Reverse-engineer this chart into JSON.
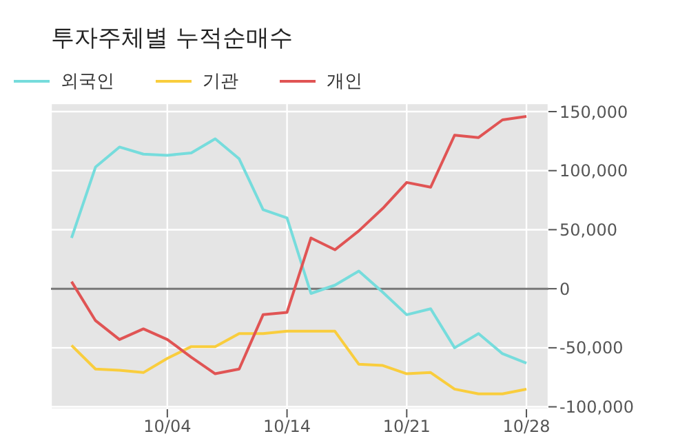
{
  "chart_data": {
    "type": "line",
    "title": "투자주체별 누적순매수",
    "categories": [
      null,
      null,
      null,
      null,
      "10/04",
      null,
      null,
      null,
      null,
      "10/14",
      null,
      null,
      null,
      null,
      "10/21",
      null,
      null,
      null,
      null,
      "10/28"
    ],
    "series": [
      {
        "name": "외국인",
        "color": "#76dcdc",
        "values": [
          43000,
          103000,
          120000,
          114000,
          113000,
          115000,
          127000,
          110000,
          67000,
          60000,
          -4000,
          3000,
          15000,
          -3000,
          -22000,
          -17000,
          -50000,
          -38000,
          -55000,
          -63000
        ]
      },
      {
        "name": "기관",
        "color": "#f9cd3d",
        "values": [
          -48000,
          -68000,
          -69000,
          -71000,
          -59000,
          -49000,
          -49000,
          -38000,
          -38000,
          -36000,
          -36000,
          -36000,
          -64000,
          -65000,
          -72000,
          -71000,
          -85000,
          -89000,
          -89000,
          -85000
        ]
      },
      {
        "name": "개인",
        "color": "#e05454",
        "values": [
          6000,
          -27000,
          -43000,
          -34000,
          -43000,
          -58000,
          -72000,
          -68000,
          -22000,
          -20000,
          43000,
          33000,
          49000,
          68000,
          90000,
          86000,
          130000,
          128000,
          143000,
          146000
        ]
      }
    ],
    "ylim": [
      -102000,
      157000
    ],
    "yticks": [
      {
        "value": -100000,
        "label": "-100,000"
      },
      {
        "value": -50000,
        "label": "-50,000"
      },
      0,
      {
        "value": 50000,
        "label": "50,000"
      },
      {
        "value": 100000,
        "label": "100,000"
      },
      {
        "value": 150000,
        "label": "150,000"
      }
    ],
    "ref_lines": [
      {
        "axis": "y",
        "value": 0,
        "color": "#777777"
      }
    ],
    "grid": true,
    "legend": "top left",
    "marker": "none",
    "line_style": "solid"
  }
}
